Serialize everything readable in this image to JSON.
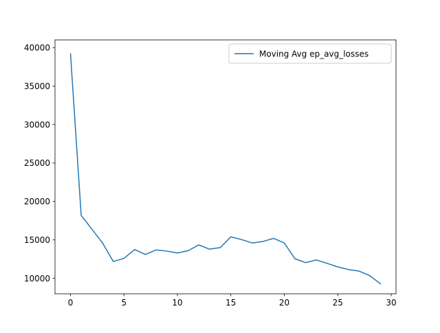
{
  "chart_data": {
    "type": "line",
    "title": "",
    "xlabel": "",
    "ylabel": "",
    "xlim": [
      -1.45,
      30.45
    ],
    "ylim": [
      8000,
      41000
    ],
    "grid": false,
    "legend_position": "top-right",
    "x_ticks": [
      0,
      5,
      10,
      15,
      20,
      25,
      30
    ],
    "y_ticks": [
      10000,
      15000,
      20000,
      25000,
      30000,
      35000,
      40000
    ],
    "x_tick_labels": [
      "0",
      "5",
      "10",
      "15",
      "20",
      "25",
      "30"
    ],
    "y_tick_labels": [
      "10000",
      "15000",
      "20000",
      "25000",
      "30000",
      "35000",
      "40000"
    ],
    "series": [
      {
        "name": "Moving Avg ep_avg_losses",
        "color": "#1f77b4",
        "x": [
          0,
          1,
          2,
          3,
          4,
          5,
          6,
          7,
          8,
          9,
          10,
          11,
          12,
          13,
          14,
          15,
          16,
          17,
          18,
          19,
          20,
          21,
          22,
          23,
          24,
          25,
          26,
          27,
          28,
          29
        ],
        "values": [
          39200,
          18200,
          16400,
          14600,
          12200,
          12600,
          13750,
          13100,
          13700,
          13550,
          13300,
          13600,
          14350,
          13800,
          14000,
          15400,
          15050,
          14600,
          14800,
          15200,
          14600,
          12550,
          12050,
          12400,
          11950,
          11500,
          11150,
          10950,
          10350,
          9300
        ]
      }
    ]
  }
}
